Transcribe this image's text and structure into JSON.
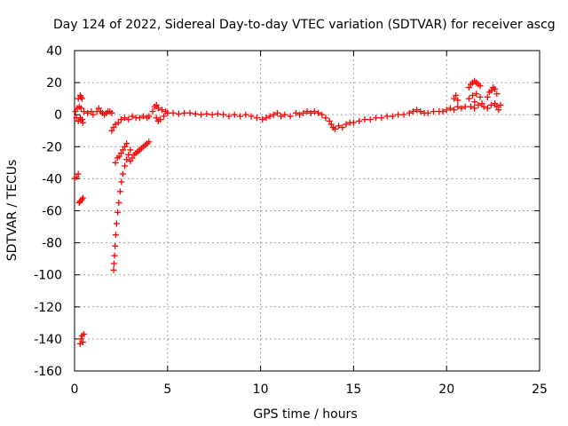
{
  "chart_data": {
    "type": "scatter",
    "title": "Day 124 of 2022, Sidereal Day-to-day VTEC variation (SDTVAR) for receiver ascg",
    "xlabel": "GPS time / hours",
    "ylabel": "SDTVAR / TECUs",
    "xlim": [
      0,
      25
    ],
    "ylim": [
      -160,
      40
    ],
    "xticks": [
      0,
      5,
      10,
      15,
      20,
      25
    ],
    "yticks": [
      -160,
      -140,
      -120,
      -100,
      -80,
      -60,
      -40,
      -20,
      0,
      20,
      40
    ],
    "grid": true,
    "marker": "+",
    "colors": {
      "series": "#ff0000",
      "grid": "#a0a0a0",
      "axis": "#000000"
    },
    "series": [
      {
        "name": "SDTVAR",
        "points": [
          [
            0.0,
            -40
          ],
          [
            0.1,
            -39
          ],
          [
            0.2,
            -37
          ],
          [
            0.05,
            2
          ],
          [
            0.15,
            4
          ],
          [
            0.25,
            5
          ],
          [
            0.35,
            4
          ],
          [
            0.1,
            -2
          ],
          [
            0.2,
            -4
          ],
          [
            0.3,
            -2
          ],
          [
            0.4,
            -3
          ],
          [
            0.45,
            -5
          ],
          [
            0.2,
            10
          ],
          [
            0.3,
            12
          ],
          [
            0.35,
            11
          ],
          [
            0.4,
            10
          ],
          [
            0.25,
            -55
          ],
          [
            0.3,
            -54
          ],
          [
            0.4,
            -53
          ],
          [
            0.45,
            -52
          ],
          [
            0.3,
            -143
          ],
          [
            0.35,
            -140
          ],
          [
            0.4,
            -138
          ],
          [
            0.45,
            -142
          ],
          [
            0.5,
            -137
          ],
          [
            0.5,
            2
          ],
          [
            0.7,
            1
          ],
          [
            0.9,
            2
          ],
          [
            1.0,
            0
          ],
          [
            1.2,
            2
          ],
          [
            1.3,
            4
          ],
          [
            1.4,
            2
          ],
          [
            1.5,
            1
          ],
          [
            1.6,
            0
          ],
          [
            1.7,
            1
          ],
          [
            1.8,
            2
          ],
          [
            1.9,
            2
          ],
          [
            2.0,
            1
          ],
          [
            2.0,
            -10
          ],
          [
            2.1,
            -8
          ],
          [
            2.2,
            -6
          ],
          [
            2.35,
            -5
          ],
          [
            2.5,
            -3
          ],
          [
            2.7,
            -2
          ],
          [
            2.9,
            -3
          ],
          [
            3.1,
            -1
          ],
          [
            3.3,
            -2
          ],
          [
            3.5,
            -2
          ],
          [
            3.7,
            -1
          ],
          [
            3.9,
            -2
          ],
          [
            4.0,
            -1
          ],
          [
            2.1,
            -97
          ],
          [
            2.12,
            -93
          ],
          [
            2.15,
            -88
          ],
          [
            2.18,
            -82
          ],
          [
            2.22,
            -75
          ],
          [
            2.26,
            -68
          ],
          [
            2.32,
            -61
          ],
          [
            2.38,
            -55
          ],
          [
            2.45,
            -48
          ],
          [
            2.52,
            -42
          ],
          [
            2.6,
            -37
          ],
          [
            2.7,
            -32
          ],
          [
            2.8,
            -28
          ],
          [
            2.9,
            -25
          ],
          [
            3.0,
            -22
          ],
          [
            2.2,
            -30
          ],
          [
            2.3,
            -27
          ],
          [
            2.4,
            -26
          ],
          [
            2.5,
            -24
          ],
          [
            2.6,
            -22
          ],
          [
            2.7,
            -20
          ],
          [
            2.8,
            -18
          ],
          [
            3.0,
            -29
          ],
          [
            3.1,
            -27
          ],
          [
            3.2,
            -25
          ],
          [
            3.3,
            -24
          ],
          [
            3.4,
            -23
          ],
          [
            3.5,
            -22
          ],
          [
            3.6,
            -21
          ],
          [
            3.7,
            -20
          ],
          [
            3.8,
            -19
          ],
          [
            3.9,
            -18
          ],
          [
            4.0,
            -17
          ],
          [
            4.2,
            2
          ],
          [
            4.3,
            5
          ],
          [
            4.4,
            6
          ],
          [
            4.5,
            4
          ],
          [
            4.4,
            -2
          ],
          [
            4.5,
            -4
          ],
          [
            4.6,
            -3
          ],
          [
            4.7,
            3
          ],
          [
            4.8,
            -1
          ],
          [
            4.9,
            2
          ],
          [
            5.0,
            1
          ],
          [
            5.3,
            1
          ],
          [
            5.6,
            0.5
          ],
          [
            5.9,
            1
          ],
          [
            6.2,
            1
          ],
          [
            6.5,
            0.5
          ],
          [
            6.8,
            0
          ],
          [
            7.1,
            0.5
          ],
          [
            7.4,
            0
          ],
          [
            7.7,
            0.5
          ],
          [
            8.0,
            0
          ],
          [
            8.3,
            -1
          ],
          [
            8.6,
            0
          ],
          [
            8.9,
            -1
          ],
          [
            9.2,
            0
          ],
          [
            9.5,
            -1
          ],
          [
            9.8,
            -2
          ],
          [
            10.1,
            -3
          ],
          [
            10.3,
            -2
          ],
          [
            10.5,
            -1
          ],
          [
            10.7,
            0
          ],
          [
            10.9,
            1
          ],
          [
            11.1,
            -1
          ],
          [
            11.3,
            0
          ],
          [
            11.6,
            -1
          ],
          [
            11.9,
            1
          ],
          [
            12.1,
            0
          ],
          [
            12.3,
            1
          ],
          [
            12.5,
            2
          ],
          [
            12.7,
            1
          ],
          [
            12.9,
            2
          ],
          [
            13.1,
            1
          ],
          [
            13.3,
            0
          ],
          [
            13.5,
            -2
          ],
          [
            13.7,
            -4
          ],
          [
            13.8,
            -6
          ],
          [
            13.9,
            -8
          ],
          [
            14.0,
            -9
          ],
          [
            14.2,
            -7
          ],
          [
            14.4,
            -8
          ],
          [
            14.6,
            -6
          ],
          [
            14.8,
            -5
          ],
          [
            15.0,
            -5
          ],
          [
            15.3,
            -4
          ],
          [
            15.6,
            -3
          ],
          [
            15.9,
            -3
          ],
          [
            16.2,
            -2
          ],
          [
            16.5,
            -2
          ],
          [
            16.8,
            -1
          ],
          [
            17.1,
            -1
          ],
          [
            17.4,
            0
          ],
          [
            17.7,
            0
          ],
          [
            18.0,
            1
          ],
          [
            18.2,
            2
          ],
          [
            18.4,
            3
          ],
          [
            18.6,
            2
          ],
          [
            18.8,
            1
          ],
          [
            19.0,
            1
          ],
          [
            19.3,
            2
          ],
          [
            19.6,
            2
          ],
          [
            19.8,
            2
          ],
          [
            20.0,
            3
          ],
          [
            20.2,
            4
          ],
          [
            20.4,
            3
          ],
          [
            20.6,
            5
          ],
          [
            20.8,
            4
          ],
          [
            21.0,
            5
          ],
          [
            20.4,
            10
          ],
          [
            20.5,
            12
          ],
          [
            20.6,
            9
          ],
          [
            21.2,
            17
          ],
          [
            21.3,
            19
          ],
          [
            21.4,
            20
          ],
          [
            21.5,
            21
          ],
          [
            21.6,
            20
          ],
          [
            21.7,
            19
          ],
          [
            21.8,
            18
          ],
          [
            21.2,
            10
          ],
          [
            21.4,
            12
          ],
          [
            21.6,
            13
          ],
          [
            21.8,
            11
          ],
          [
            21.5,
            8
          ],
          [
            21.3,
            5
          ],
          [
            21.5,
            4
          ],
          [
            21.7,
            6
          ],
          [
            21.9,
            7
          ],
          [
            22.0,
            5
          ],
          [
            22.2,
            11
          ],
          [
            22.3,
            14
          ],
          [
            22.4,
            15
          ],
          [
            22.5,
            17
          ],
          [
            22.6,
            16
          ],
          [
            22.7,
            13
          ],
          [
            22.2,
            4
          ],
          [
            22.4,
            6
          ],
          [
            22.6,
            7
          ],
          [
            22.7,
            5
          ],
          [
            22.8,
            3
          ],
          [
            22.9,
            6
          ]
        ]
      }
    ]
  }
}
